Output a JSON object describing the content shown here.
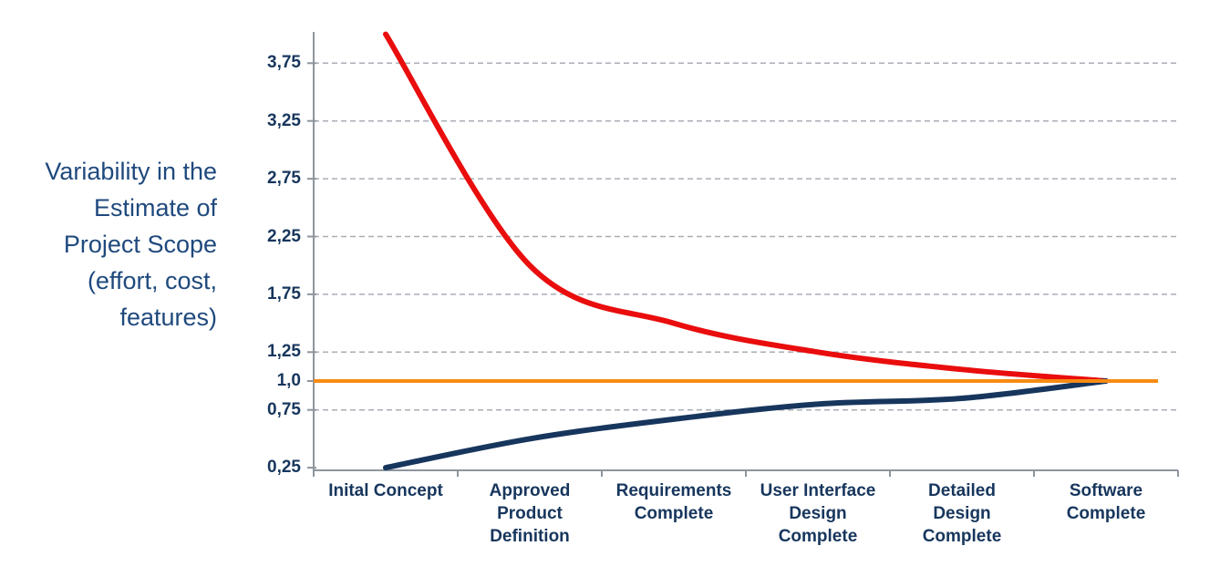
{
  "chart_data": {
    "type": "line",
    "title": "",
    "y_axis_label": "Variability in the\nEstimate of\nProject Scope\n(effort, cost,\nfeatures)",
    "categories": [
      "Inital Concept",
      "Approved\nProduct\nDefinition",
      "Requirements\nComplete",
      "User Interface\nDesign\nComplete",
      "Detailed\nDesign\nComplete",
      "Software\nComplete"
    ],
    "y_ticks": [
      {
        "label": "3,75",
        "value": 3.75
      },
      {
        "label": "3,25",
        "value": 3.25
      },
      {
        "label": "2,75",
        "value": 2.75
      },
      {
        "label": "2,25",
        "value": 2.25
      },
      {
        "label": "1,75",
        "value": 1.75
      },
      {
        "label": "1,25",
        "value": 1.25
      },
      {
        "label": "1,0",
        "value": 1.0
      },
      {
        "label": "0,75",
        "value": 0.75
      },
      {
        "label": "0,25",
        "value": 0.25
      }
    ],
    "gridline_values": [
      3.75,
      3.25,
      2.75,
      2.25,
      1.75,
      1.25,
      0.75
    ],
    "series": [
      {
        "id": "upper-bound-line",
        "values": [
          4.0,
          2.0,
          1.5,
          1.25,
          1.1,
          1.0
        ],
        "color": "#E90D0D",
        "width": 6,
        "smooth": true
      },
      {
        "id": "lower-bound-line",
        "values": [
          0.25,
          0.5,
          0.67,
          0.8,
          0.85,
          1.0
        ],
        "color": "#17365D",
        "width": 6,
        "smooth": true
      }
    ],
    "baseline": {
      "id": "baseline-line",
      "value": 1.0,
      "color": "#F78B12",
      "width": 4
    },
    "ylim": [
      0.2,
      4.0
    ],
    "grid": "dashed-horizontal",
    "legend": "none",
    "colors": {
      "gridline": "#A9AEB6",
      "axis": "#8E959D",
      "tick_text": "#17365D",
      "axis_title_text": "#1F497D"
    }
  }
}
